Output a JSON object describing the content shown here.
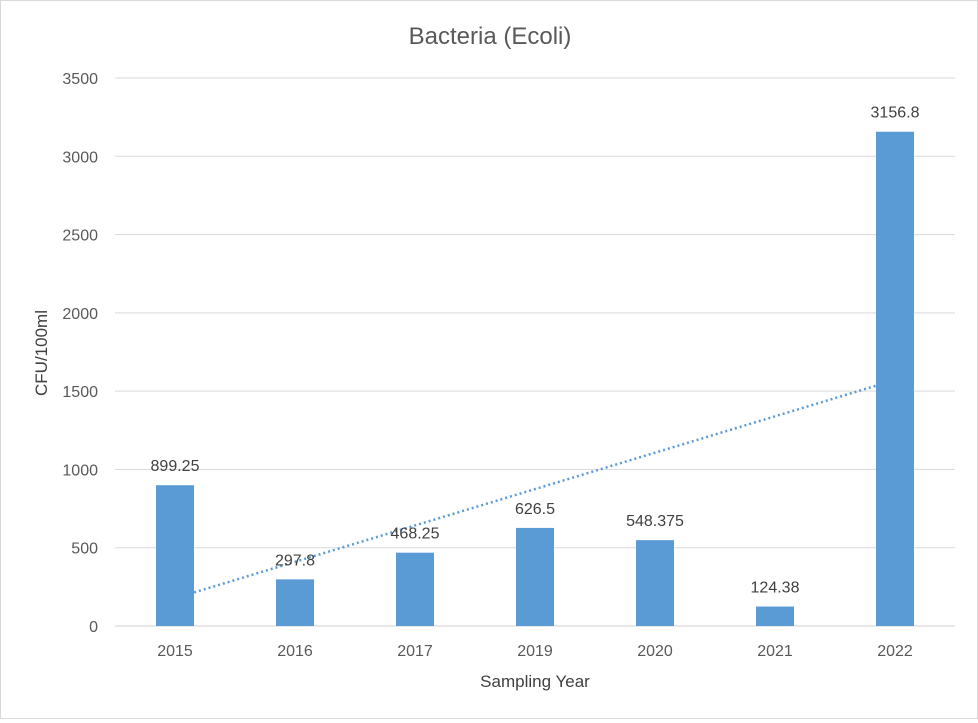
{
  "chart_data": {
    "type": "bar",
    "title": "Bacteria (Ecoli)",
    "xlabel": "Sampling Year",
    "ylabel": "CFU/100ml",
    "categories": [
      "2015",
      "2016",
      "2017",
      "2019",
      "2020",
      "2021",
      "2022"
    ],
    "series": [
      {
        "values": [
          899.25,
          297.8,
          468.25,
          626.5,
          548.375,
          124.38,
          3156.8
        ],
        "labels": [
          "899.25",
          "297.8",
          "468.25",
          "626.5",
          "548.375",
          "124.38",
          "3156.8"
        ],
        "color": "#5b9bd5"
      }
    ],
    "trendline": {
      "type": "linear",
      "style": "dotted",
      "color": "#5b9bd5"
    },
    "ylim": [
      0,
      3500
    ],
    "yticks": [
      0,
      500,
      1000,
      1500,
      2000,
      2500,
      3000,
      3500
    ],
    "grid": true,
    "legend": "none"
  }
}
